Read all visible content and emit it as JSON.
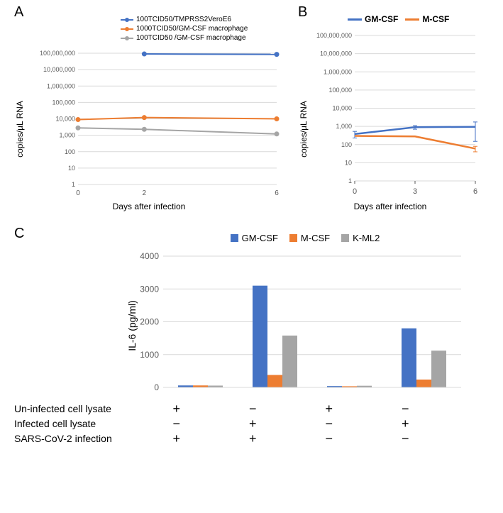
{
  "panelA": {
    "label": "A",
    "type": "line",
    "ylabel": "copies/µL RNA",
    "xlabel": "Days after infection",
    "x_points": [
      0,
      2,
      6
    ],
    "series": [
      {
        "name": "100TCID50/TMPRSS2VeroE6",
        "color": "#4472c4",
        "values": [
          null,
          90000000,
          85000000
        ]
      },
      {
        "name": "1000TCID50/GM-CSF macrophage",
        "color": "#ed7d31",
        "values": [
          9000,
          12000,
          10000
        ]
      },
      {
        "name": "100TCID50 /GM-CSF macrophage",
        "color": "#a5a5a5",
        "values": [
          2800,
          2300,
          1200
        ]
      }
    ],
    "ylim": [
      1,
      100000000
    ],
    "yticks": [
      "1",
      "10",
      "100",
      "1,000",
      "10,000",
      "100,000",
      "1,000,000",
      "10,000,000",
      "100,000,000"
    ],
    "scale": "log",
    "font": {
      "label_fontsize": 12,
      "tick_fontsize": 9
    },
    "colors": {
      "grid": "#d9d9d9",
      "bg": "#ffffff",
      "text": "#595959"
    },
    "line_width": 2,
    "marker_size": 5
  },
  "panelB": {
    "label": "B",
    "type": "line",
    "ylabel": "copies/µL RNA",
    "xlabel": "Days after infection",
    "x_points": [
      0,
      3,
      6
    ],
    "series": [
      {
        "name": "GM-CSF",
        "color": "#4472c4",
        "values": [
          380,
          900,
          950
        ],
        "err": [
          150,
          200,
          800
        ]
      },
      {
        "name": "M-CSF",
        "color": "#ed7d31",
        "values": [
          300,
          280,
          60
        ],
        "err": [
          0,
          0,
          20
        ]
      }
    ],
    "ylim": [
      1,
      100000000
    ],
    "yticks": [
      "1",
      "10",
      "100",
      "1,000",
      "10,000",
      "100,000",
      "1,000,000",
      "10,000,000",
      "100,000,000"
    ],
    "scale": "log",
    "font": {
      "label_fontsize": 12,
      "tick_fontsize": 9
    },
    "colors": {
      "grid": "#d9d9d9",
      "bg": "#ffffff",
      "text": "#595959"
    },
    "line_width": 2.5
  },
  "panelC": {
    "label": "C",
    "type": "bar",
    "ylabel": "IL-6 (pg/ml)",
    "series": [
      {
        "name": "GM-CSF",
        "color": "#4472c4",
        "values": [
          60,
          3100,
          40,
          1800
        ]
      },
      {
        "name": "M-CSF",
        "color": "#ed7d31",
        "values": [
          60,
          380,
          35,
          240
        ]
      },
      {
        "name": "K-ML2",
        "color": "#a5a5a5",
        "values": [
          55,
          1580,
          50,
          1120
        ]
      }
    ],
    "ylim": [
      0,
      4000
    ],
    "ytick_step": 1000,
    "yticks": [
      0,
      1000,
      2000,
      3000,
      4000
    ],
    "font": {
      "label_fontsize": 14,
      "tick_fontsize": 12
    },
    "colors": {
      "grid": "#d9d9d9",
      "bg": "#ffffff",
      "text": "#595959"
    },
    "bar_width": 0.25,
    "conditions": [
      {
        "label": "Un-infected cell lysate",
        "values": [
          "+",
          "−",
          "+",
          "−"
        ]
      },
      {
        "label": "Infected cell lysate",
        "values": [
          "−",
          "+",
          "−",
          "+"
        ]
      },
      {
        "label": "SARS-CoV-2 infection",
        "values": [
          "+",
          "+",
          "−",
          "−"
        ]
      }
    ]
  }
}
